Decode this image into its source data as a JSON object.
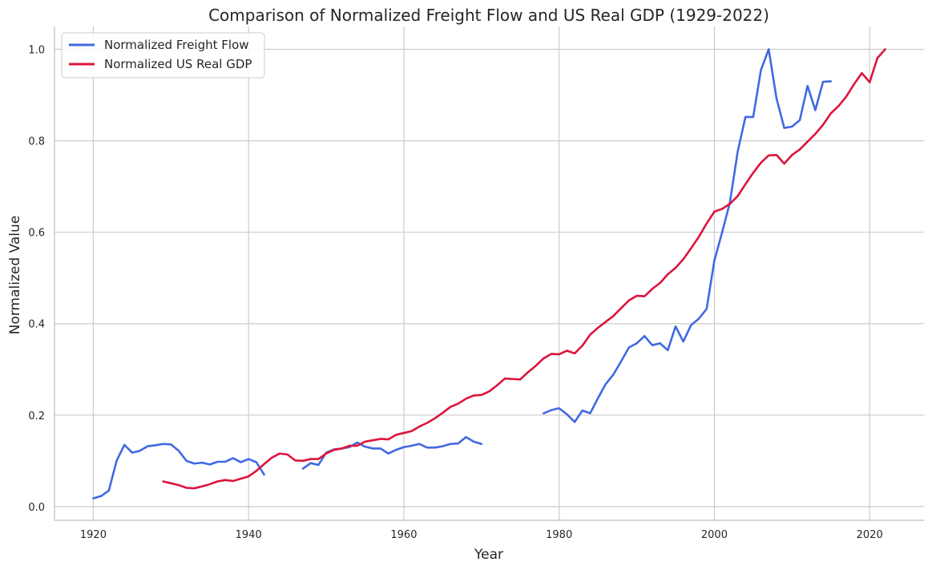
{
  "chart_data": {
    "type": "line",
    "title": "Comparison of Normalized Freight Flow and US Real GDP (1929-2022)",
    "xlabel": "Year",
    "ylabel": "Normalized Value",
    "xlim": [
      1915,
      2027
    ],
    "ylim": [
      -0.03,
      1.05
    ],
    "xticks": [
      1920,
      1940,
      1960,
      1980,
      2000,
      2020
    ],
    "yticks": [
      "0.0",
      "0.2",
      "0.4",
      "0.6",
      "0.8",
      "1.0"
    ],
    "grid": true,
    "legend_position": "top-left",
    "series": [
      {
        "name": "Normalized Freight Flow",
        "color": "#4169e1",
        "x": [
          1920,
          1921,
          1922,
          1923,
          1924,
          1925,
          1926,
          1927,
          1928,
          1929,
          1930,
          1931,
          1932,
          1933,
          1934,
          1935,
          1936,
          1937,
          1938,
          1939,
          1940,
          1941,
          1942,
          null,
          1947,
          1948,
          1949,
          1950,
          1951,
          1952,
          1953,
          1954,
          1955,
          1956,
          1957,
          1958,
          1959,
          1960,
          1961,
          1962,
          1963,
          1964,
          1965,
          1966,
          1967,
          1968,
          1969,
          1970,
          null,
          1978,
          1979,
          1980,
          1981,
          1982,
          1983,
          1984,
          1985,
          1986,
          1987,
          1988,
          1989,
          1990,
          1991,
          1992,
          1993,
          1994,
          1995,
          1996,
          1997,
          1998,
          1999,
          2000,
          2001,
          2002,
          2003,
          2004,
          2005,
          2006,
          2007,
          2008,
          2009,
          2010,
          2011,
          2012,
          2013,
          2014,
          2015
        ],
        "y": [
          0.018,
          0.023,
          0.035,
          0.1,
          0.135,
          0.118,
          0.122,
          0.132,
          0.134,
          0.137,
          0.136,
          0.122,
          0.1,
          0.094,
          0.096,
          0.092,
          0.098,
          0.098,
          0.106,
          0.097,
          0.104,
          0.097,
          0.07,
          null,
          0.083,
          0.095,
          0.091,
          0.118,
          0.125,
          0.127,
          0.13,
          0.14,
          0.131,
          0.127,
          0.127,
          0.116,
          0.124,
          0.13,
          0.133,
          0.137,
          0.129,
          0.129,
          0.132,
          0.137,
          0.138,
          0.152,
          0.142,
          0.137,
          null,
          0.204,
          0.211,
          0.215,
          0.202,
          0.185,
          0.21,
          0.204,
          0.237,
          0.268,
          0.289,
          0.318,
          0.348,
          0.357,
          0.373,
          0.353,
          0.357,
          0.342,
          0.394,
          0.361,
          0.397,
          0.411,
          0.432,
          0.538,
          0.6,
          0.665,
          0.776,
          0.852,
          0.852,
          0.955,
          1.0,
          0.893,
          0.828,
          0.831,
          0.845,
          0.92,
          0.867,
          0.929,
          0.93
        ]
      },
      {
        "name": "Normalized US Real GDP",
        "color": "#dc143c",
        "x": [
          1929,
          1930,
          1931,
          1932,
          1933,
          1934,
          1935,
          1936,
          1937,
          1938,
          1939,
          1940,
          1941,
          1942,
          1943,
          1944,
          1945,
          1946,
          1947,
          1948,
          1949,
          1950,
          1951,
          1952,
          1953,
          1954,
          1955,
          1956,
          1957,
          1958,
          1959,
          1960,
          1961,
          1962,
          1963,
          1964,
          1965,
          1966,
          1967,
          1968,
          1969,
          1970,
          1971,
          1972,
          1973,
          1974,
          1975,
          1976,
          1977,
          1978,
          1979,
          1980,
          1981,
          1982,
          1983,
          1984,
          1985,
          1986,
          1987,
          1988,
          1989,
          1990,
          1991,
          1992,
          1993,
          1994,
          1995,
          1996,
          1997,
          1998,
          1999,
          2000,
          2001,
          2002,
          2003,
          2004,
          2005,
          2006,
          2007,
          2008,
          2009,
          2010,
          2011,
          2012,
          2013,
          2014,
          2015,
          2016,
          2017,
          2018,
          2019,
          2020,
          2021,
          2022
        ],
        "y": [
          0.055,
          0.051,
          0.047,
          0.041,
          0.04,
          0.044,
          0.049,
          0.055,
          0.058,
          0.056,
          0.061,
          0.066,
          0.078,
          0.093,
          0.107,
          0.116,
          0.114,
          0.101,
          0.1,
          0.104,
          0.104,
          0.116,
          0.124,
          0.127,
          0.133,
          0.133,
          0.142,
          0.145,
          0.148,
          0.147,
          0.157,
          0.161,
          0.165,
          0.175,
          0.183,
          0.193,
          0.205,
          0.218,
          0.225,
          0.236,
          0.243,
          0.244,
          0.252,
          0.265,
          0.28,
          0.279,
          0.278,
          0.294,
          0.308,
          0.324,
          0.334,
          0.333,
          0.341,
          0.335,
          0.352,
          0.376,
          0.391,
          0.404,
          0.417,
          0.434,
          0.451,
          0.461,
          0.46,
          0.476,
          0.489,
          0.508,
          0.522,
          0.541,
          0.565,
          0.59,
          0.619,
          0.645,
          0.651,
          0.662,
          0.679,
          0.705,
          0.73,
          0.752,
          0.768,
          0.769,
          0.75,
          0.769,
          0.781,
          0.798,
          0.815,
          0.835,
          0.86,
          0.876,
          0.897,
          0.924,
          0.948,
          0.928,
          0.981,
          1.0
        ]
      }
    ]
  }
}
